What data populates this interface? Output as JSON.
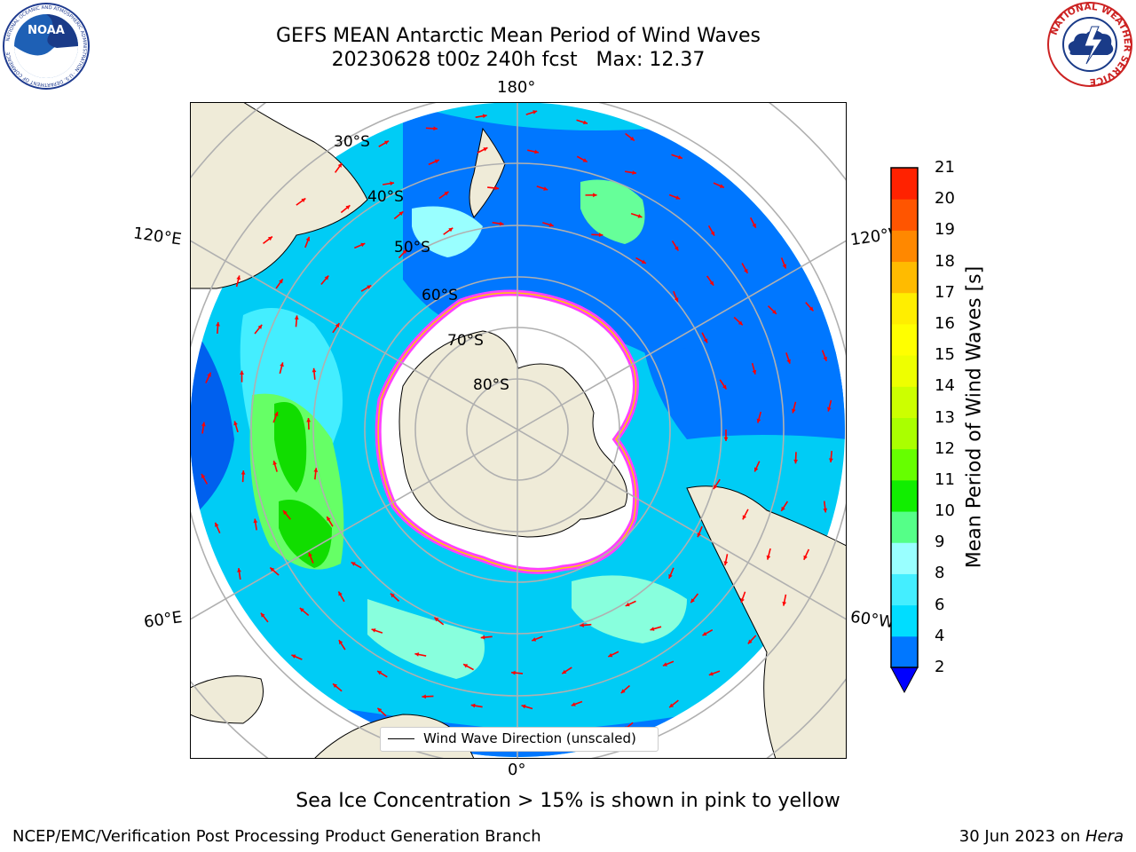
{
  "title": {
    "line1": "GEFS MEAN Antarctic Mean Period of Wind Waves",
    "line2": "20230628 t00z 240h fcst   Max: 12.37"
  },
  "map": {
    "longitude_labels": {
      "top": "180°",
      "bottom": "0°",
      "upper_left": "120°E",
      "lower_left": "60°E",
      "upper_right": "120°W",
      "lower_right": "60°W"
    },
    "latitude_labels": [
      "30°S",
      "40°S",
      "50°S",
      "60°S",
      "70°S",
      "80°S"
    ],
    "legend": "Wind Wave Direction (unscaled)",
    "colors": {
      "land": "#efebd8",
      "sea_ice": "#ffffff",
      "ice_edge": "#ff40ff",
      "arrow": "#ff0000",
      "graticule": "#b0b0b0"
    }
  },
  "colorbar": {
    "label": "Mean Period of Wind Waves [s]",
    "ticks": [
      "2",
      "4",
      "6",
      "8",
      "9",
      "10",
      "11",
      "12",
      "13",
      "14",
      "15",
      "16",
      "17",
      "18",
      "19",
      "20",
      "21"
    ],
    "colors": [
      "#0077ff",
      "#00ddff",
      "#44eeff",
      "#99ffff",
      "#55ff88",
      "#11ee00",
      "#66ff00",
      "#aaff00",
      "#ccff00",
      "#eeff00",
      "#ffff00",
      "#ffee00",
      "#ffbb00",
      "#ff8800",
      "#ff5500",
      "#ff2200"
    ],
    "under_color": "#0000ff"
  },
  "note": "Sea Ice Concentration > 15% is shown in pink to yellow",
  "footer": {
    "left": "NCEP/EMC/Verification Post Processing Product Generation Branch",
    "right_prefix": "30 Jun 2023 on ",
    "right_italic": "Hera"
  },
  "logos": {
    "noaa": {
      "text": "NOAA",
      "ring": "NATIONAL OCEANIC AND ATMOSPHERIC ADMINISTRATION · U.S. DEPARTMENT OF COMMERCE"
    },
    "nws": {
      "ring": "NATIONAL WEATHER SERVICE"
    }
  }
}
